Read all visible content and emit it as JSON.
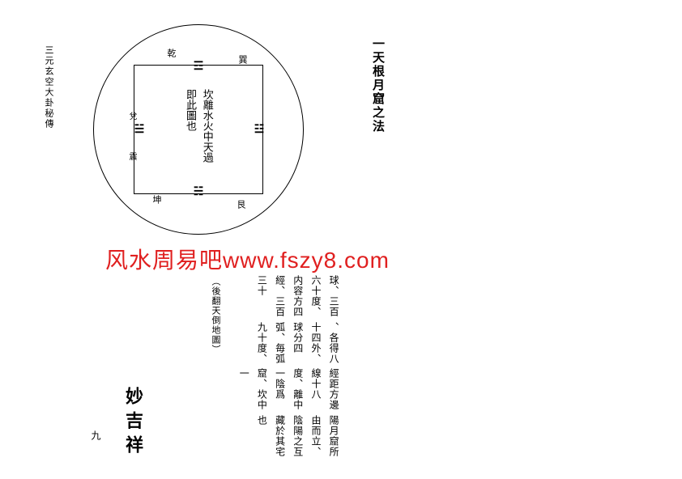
{
  "colors": {
    "background": "#ffffff",
    "ink": "#000000",
    "watermark": "#e02020"
  },
  "leftLabel": "三元玄空大卦秘傳",
  "titleColumn": "一天根月窟之法",
  "diagram": {
    "circle_stroke": "#000000",
    "square_stroke": "#000000",
    "stroke_width": 1.5,
    "centerText": "坎離水火中天過即此圖也",
    "trigrams": {
      "top": "☲",
      "bottom": "☵",
      "left": "☱",
      "right": "☳"
    },
    "cornerLabels": {
      "tl": "乾",
      "tr": "巽",
      "bl": "坤",
      "br": "艮"
    },
    "edgeLabels": {
      "leftTop": "兌",
      "leftBot": "震"
    }
  },
  "watermark": "风水周易吧www.fszy8.com",
  "bodyText": {
    "col1": "球、三百六十度、内容方四經、三百三十",
    "col2": "、各得八十四外、球分四弧、毎弧九十度、",
    "col3": "經距方邊線十八度、離中一陰爲窟、坎中一",
    "col4": "陽月窟所由而立、陰陽之互藏於其宅也"
  },
  "parenNote": "︵後翻天倒地圖︶",
  "seal": "妙吉祥",
  "pageNum": "九"
}
